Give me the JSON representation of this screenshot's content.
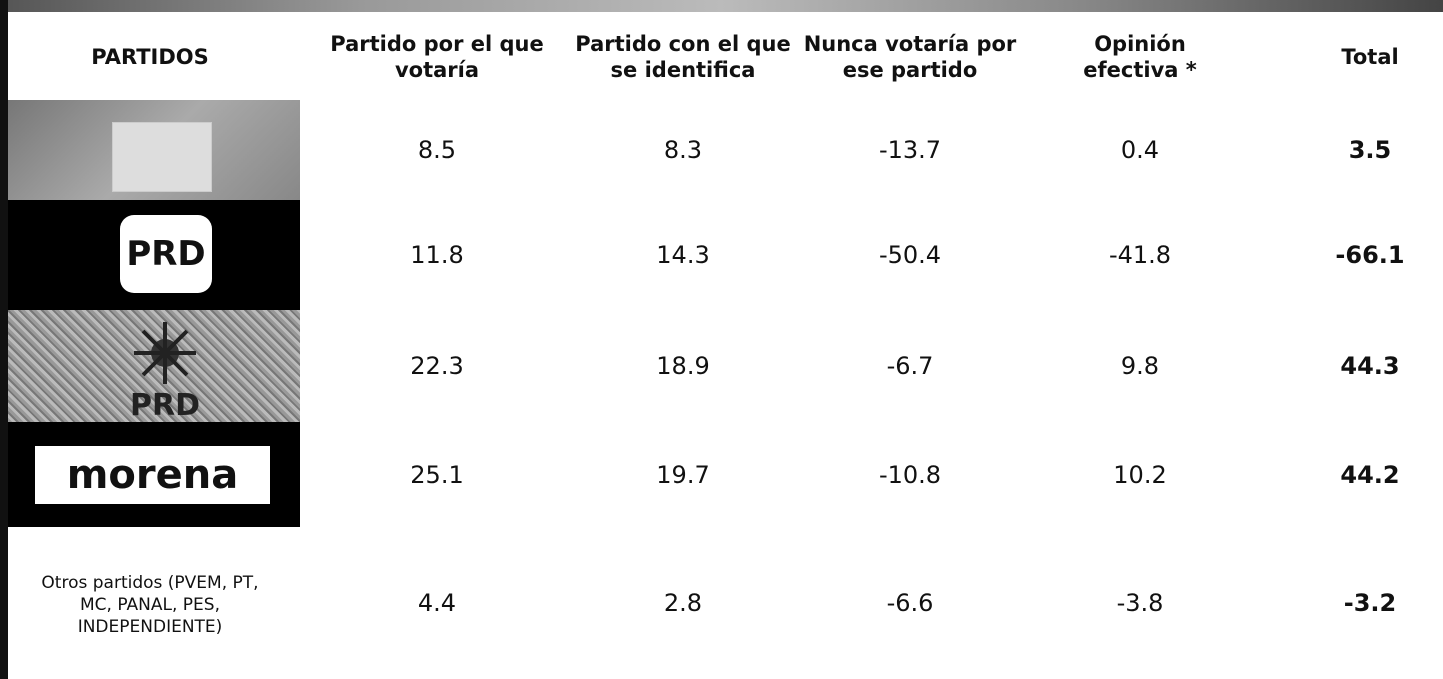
{
  "table": {
    "header": [
      "PARTIDOS",
      "Partido por el que votaría",
      "Partido con el que se identifica",
      "Nunca votaría por ese partido",
      "Opinión efectiva *",
      "Total"
    ],
    "rows": [
      {
        "values": [
          8.5,
          8.3,
          -13.7,
          0.4,
          3.5
        ]
      },
      {
        "party": "PRD",
        "values": [
          11.8,
          14.3,
          -50.4,
          -41.8,
          -66.1
        ]
      },
      {
        "party": "PRD",
        "values": [
          22.3,
          18.9,
          -6.7,
          9.8,
          44.3
        ]
      },
      {
        "party": "morena",
        "values": [
          25.1,
          19.7,
          -10.8,
          10.2,
          44.2
        ]
      },
      {
        "party": "Otros partidos (PVEM, PT, MC, PANAL, PES, INDEPENDIENTE)",
        "values": [
          4.4,
          2.8,
          -6.6,
          -3.8,
          -3.2
        ]
      }
    ]
  }
}
